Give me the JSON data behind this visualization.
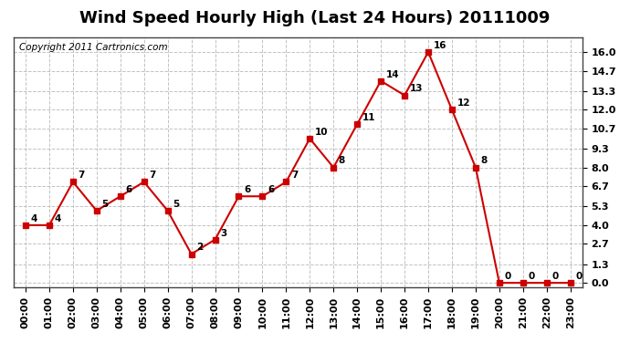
{
  "title": "Wind Speed Hourly High (Last 24 Hours) 20111009",
  "copyright": "Copyright 2011 Cartronics.com",
  "hours": [
    "00:00",
    "01:00",
    "02:00",
    "03:00",
    "04:00",
    "05:00",
    "06:00",
    "07:00",
    "08:00",
    "09:00",
    "10:00",
    "11:00",
    "12:00",
    "13:00",
    "14:00",
    "15:00",
    "16:00",
    "17:00",
    "18:00",
    "19:00",
    "20:00",
    "21:00",
    "22:00",
    "23:00"
  ],
  "values": [
    4,
    4,
    7,
    5,
    6,
    7,
    5,
    2,
    3,
    6,
    6,
    7,
    10,
    8,
    11,
    14,
    13,
    16,
    12,
    8,
    0,
    0,
    0,
    0
  ],
  "yticks": [
    0.0,
    1.3,
    2.7,
    4.0,
    5.3,
    6.7,
    8.0,
    9.3,
    10.7,
    12.0,
    13.3,
    14.7,
    16.0
  ],
  "line_color": "#cc0000",
  "marker_color": "#cc0000",
  "grid_color": "#bbbbbb",
  "bg_color": "#ffffff",
  "title_fontsize": 13,
  "copyright_fontsize": 7.5,
  "label_fontsize": 8,
  "annotation_fontsize": 7.5,
  "ylim": [
    -0.3,
    17.0
  ],
  "xlim": [
    -0.5,
    23.5
  ]
}
